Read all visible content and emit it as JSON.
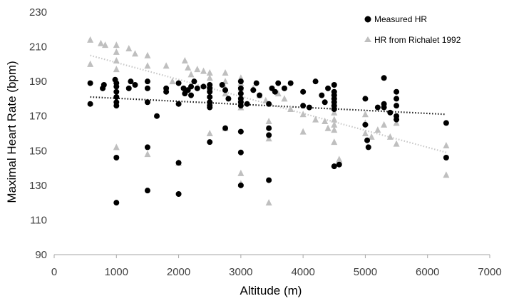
{
  "chart_data": {
    "type": "scatter",
    "xlabel": "Altitude (m)",
    "ylabel": "Maximal Heart Rate (bpm)",
    "xlim": [
      0,
      7000
    ],
    "ylim": [
      90,
      230
    ],
    "xticks": [
      0,
      1000,
      2000,
      3000,
      4000,
      5000,
      6000,
      7000
    ],
    "yticks": [
      90,
      110,
      130,
      150,
      170,
      190,
      210,
      230
    ],
    "xtick_labels": [
      "0",
      "1000",
      "2000",
      "3000",
      "4000",
      "5000",
      "6000",
      "7000"
    ],
    "ytick_labels": [
      "90",
      "110",
      "130",
      "150",
      "170",
      "190",
      "210",
      "230"
    ],
    "grid": false,
    "legend_position": "top-right",
    "series": [
      {
        "name": "Measured HR",
        "marker": "circle",
        "color": "#000000",
        "points": [
          [
            580,
            177
          ],
          [
            580,
            189
          ],
          [
            780,
            186
          ],
          [
            800,
            188
          ],
          [
            980,
            191
          ],
          [
            1000,
            189
          ],
          [
            1000,
            187
          ],
          [
            1000,
            184
          ],
          [
            1000,
            181
          ],
          [
            1000,
            178
          ],
          [
            1000,
            176
          ],
          [
            1000,
            146
          ],
          [
            1000,
            120
          ],
          [
            1200,
            186
          ],
          [
            1230,
            190
          ],
          [
            1300,
            188
          ],
          [
            1500,
            190
          ],
          [
            1500,
            186
          ],
          [
            1500,
            178
          ],
          [
            1500,
            152
          ],
          [
            1500,
            127
          ],
          [
            1650,
            170
          ],
          [
            1800,
            186
          ],
          [
            1800,
            184
          ],
          [
            2000,
            189
          ],
          [
            2000,
            177
          ],
          [
            2000,
            143
          ],
          [
            2000,
            125
          ],
          [
            2080,
            186
          ],
          [
            2100,
            183
          ],
          [
            2150,
            185
          ],
          [
            2200,
            187
          ],
          [
            2200,
            182
          ],
          [
            2250,
            190
          ],
          [
            2300,
            186
          ],
          [
            2400,
            187
          ],
          [
            2500,
            188
          ],
          [
            2500,
            186
          ],
          [
            2500,
            184
          ],
          [
            2500,
            181
          ],
          [
            2500,
            178
          ],
          [
            2500,
            176
          ],
          [
            2500,
            175
          ],
          [
            2500,
            155
          ],
          [
            2700,
            188
          ],
          [
            2750,
            185
          ],
          [
            2750,
            163
          ],
          [
            2800,
            180
          ],
          [
            3000,
            190
          ],
          [
            3000,
            186
          ],
          [
            3000,
            183
          ],
          [
            3000,
            180
          ],
          [
            3000,
            178
          ],
          [
            3000,
            176
          ],
          [
            3000,
            161
          ],
          [
            3000,
            149
          ],
          [
            3000,
            130
          ],
          [
            3100,
            177
          ],
          [
            3200,
            185
          ],
          [
            3250,
            189
          ],
          [
            3300,
            182
          ],
          [
            3450,
            177
          ],
          [
            3450,
            163
          ],
          [
            3450,
            159
          ],
          [
            3450,
            133
          ],
          [
            3500,
            186
          ],
          [
            3550,
            184
          ],
          [
            3600,
            189
          ],
          [
            3700,
            186
          ],
          [
            3800,
            189
          ],
          [
            4000,
            184
          ],
          [
            4000,
            176
          ],
          [
            4100,
            175
          ],
          [
            4200,
            190
          ],
          [
            4300,
            182
          ],
          [
            4350,
            178
          ],
          [
            4400,
            186
          ],
          [
            4500,
            188
          ],
          [
            4500,
            184
          ],
          [
            4500,
            182
          ],
          [
            4500,
            180
          ],
          [
            4500,
            178
          ],
          [
            4500,
            176
          ],
          [
            4500,
            174
          ],
          [
            4500,
            141
          ],
          [
            4580,
            142
          ],
          [
            5000,
            180
          ],
          [
            5000,
            165
          ],
          [
            5030,
            156
          ],
          [
            5050,
            152
          ],
          [
            5200,
            175
          ],
          [
            5300,
            192
          ],
          [
            5300,
            177
          ],
          [
            5300,
            175
          ],
          [
            5400,
            172
          ],
          [
            5500,
            184
          ],
          [
            5500,
            180
          ],
          [
            5500,
            176
          ],
          [
            5500,
            170
          ],
          [
            5500,
            168
          ],
          [
            6300,
            166
          ],
          [
            6300,
            146
          ]
        ],
        "trendline": {
          "style": "dotted",
          "color": "#1a1a1a",
          "from": [
            580,
            181
          ],
          "to": [
            6300,
            171
          ]
        }
      },
      {
        "name": "HR from Richalet 1992",
        "marker": "triangle",
        "color": "#bfbfbf",
        "points": [
          [
            580,
            214
          ],
          [
            580,
            200
          ],
          [
            750,
            212
          ],
          [
            820,
            211
          ],
          [
            1000,
            211
          ],
          [
            1000,
            207
          ],
          [
            1000,
            202
          ],
          [
            1000,
            197
          ],
          [
            1000,
            152
          ],
          [
            1200,
            209
          ],
          [
            1300,
            206
          ],
          [
            1500,
            205
          ],
          [
            1500,
            199
          ],
          [
            1500,
            148
          ],
          [
            1800,
            199
          ],
          [
            1900,
            190
          ],
          [
            2000,
            143
          ],
          [
            2100,
            202
          ],
          [
            2150,
            198
          ],
          [
            2200,
            194
          ],
          [
            2300,
            197
          ],
          [
            2400,
            196
          ],
          [
            2500,
            195
          ],
          [
            2500,
            192
          ],
          [
            2500,
            188
          ],
          [
            2500,
            186
          ],
          [
            2500,
            182
          ],
          [
            2500,
            178
          ],
          [
            2500,
            160
          ],
          [
            2750,
            195
          ],
          [
            2750,
            190
          ],
          [
            2750,
            186
          ],
          [
            2750,
            183
          ],
          [
            2750,
            163
          ],
          [
            3000,
            192
          ],
          [
            3000,
            189
          ],
          [
            3000,
            186
          ],
          [
            3000,
            182
          ],
          [
            3000,
            180
          ],
          [
            3000,
            175
          ],
          [
            3000,
            137
          ],
          [
            3000,
            131
          ],
          [
            3200,
            186
          ],
          [
            3300,
            182
          ],
          [
            3400,
            179
          ],
          [
            3450,
            167
          ],
          [
            3450,
            157
          ],
          [
            3450,
            120
          ],
          [
            3600,
            183
          ],
          [
            3700,
            180
          ],
          [
            3800,
            174
          ],
          [
            4000,
            171
          ],
          [
            4000,
            161
          ],
          [
            4200,
            168
          ],
          [
            4350,
            167
          ],
          [
            4400,
            163
          ],
          [
            4500,
            176
          ],
          [
            4500,
            172
          ],
          [
            4500,
            168
          ],
          [
            4500,
            165
          ],
          [
            4500,
            162
          ],
          [
            4500,
            155
          ],
          [
            4580,
            144
          ],
          [
            4580,
            145
          ],
          [
            5000,
            171
          ],
          [
            5000,
            166
          ],
          [
            5000,
            160
          ],
          [
            5100,
            158
          ],
          [
            5200,
            162
          ],
          [
            5300,
            165
          ],
          [
            5400,
            158
          ],
          [
            5500,
            166
          ],
          [
            5500,
            154
          ],
          [
            6300,
            153
          ],
          [
            6300,
            136
          ]
        ],
        "trendline": {
          "style": "dotted",
          "color": "#c8c8c8",
          "from": [
            580,
            205
          ],
          "to": [
            6300,
            149
          ]
        }
      }
    ]
  }
}
